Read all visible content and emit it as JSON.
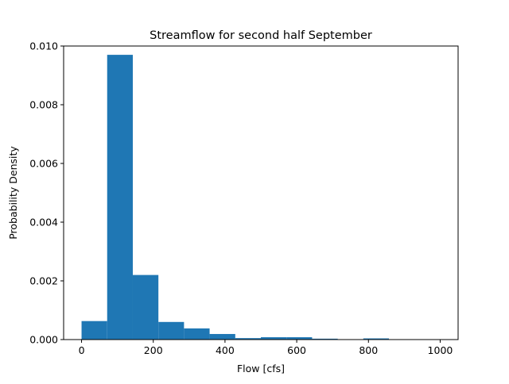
{
  "chart_data": {
    "type": "bar",
    "title": "Streamflow for second half September",
    "xlabel": "Flow [cfs]",
    "ylabel": "Probability Density",
    "xlim": [
      -50,
      1050
    ],
    "ylim": [
      0,
      0.01
    ],
    "xticks": [
      0,
      200,
      400,
      600,
      800,
      1000
    ],
    "xtick_labels": [
      "0",
      "200",
      "400",
      "600",
      "800",
      "1000"
    ],
    "yticks": [
      0,
      0.002,
      0.004,
      0.006,
      0.008,
      0.01
    ],
    "ytick_labels": [
      "0.000",
      "0.002",
      "0.004",
      "0.006",
      "0.008",
      "0.010"
    ],
    "bin_edges": [
      0,
      71.4,
      142.9,
      214.3,
      285.7,
      357.1,
      428.6,
      500,
      571.4,
      642.9,
      714.3,
      785.7,
      857.1,
      928.6,
      1000
    ],
    "values": [
      0.00063,
      0.0097,
      0.0022,
      0.0006,
      0.00038,
      0.00019,
      5e-05,
      8e-05,
      8e-05,
      3e-05,
      1e-05,
      4e-05,
      1e-05,
      1e-05
    ],
    "bar_color": "#1f77b4",
    "grid": false
  }
}
